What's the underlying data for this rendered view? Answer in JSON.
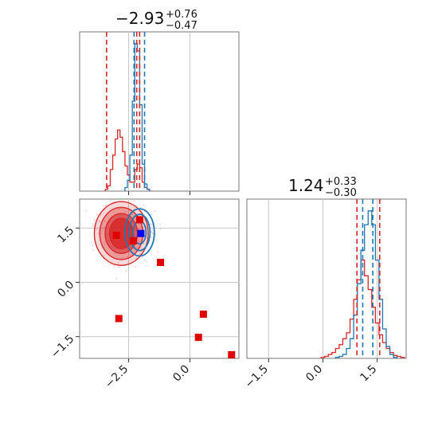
{
  "chart_data": [
    {
      "type": "histogram",
      "panel": "top-left",
      "title": {
        "median": "−2.93",
        "plus": "+0.76",
        "minus": "−0.47"
      },
      "xlim": [
        -4.5,
        2.0
      ],
      "x_ticks": [
        -2.5,
        0.0
      ],
      "grid": true,
      "series": [
        {
          "color": "#d62728",
          "x": [
            -3.4,
            -3.3,
            -3.2,
            -3.1,
            -3.0,
            -2.9,
            -2.8,
            -2.7,
            -2.6,
            -2.5,
            -2.4,
            -2.3,
            -2.2,
            -2.1,
            -2.0,
            -1.9,
            -1.8,
            -1.7,
            -1.6
          ],
          "y": [
            0.01,
            0.03,
            0.12,
            0.2,
            0.29,
            0.34,
            0.3,
            0.22,
            0.14,
            0.09,
            0.05,
            0.05,
            0.12,
            0.15,
            0.13,
            0.05,
            0.02,
            0.01,
            0.0
          ]
        },
        {
          "color": "#1f77b4",
          "x": [
            -2.6,
            -2.5,
            -2.4,
            -2.3,
            -2.2,
            -2.1,
            -2.0,
            -1.9,
            -1.8,
            -1.7
          ],
          "y": [
            0.02,
            0.06,
            0.2,
            0.5,
            0.82,
            0.78,
            0.48,
            0.15,
            0.04,
            0.01
          ]
        }
      ],
      "quantile_lines": [
        {
          "color": "#d62728",
          "x": [
            -3.4,
            -2.17,
            -2.05
          ]
        },
        {
          "color": "#1f77b4",
          "x": [
            -2.28,
            -1.85
          ]
        }
      ]
    },
    {
      "type": "scatter",
      "panel": "bottom-left",
      "xlim": [
        -4.5,
        2.0
      ],
      "ylim": [
        -2.1,
        2.3
      ],
      "x_ticks": [
        -2.5,
        0.0
      ],
      "y_ticks": [
        -1.5,
        0.0,
        1.5
      ],
      "grid": true,
      "contours": [
        {
          "color": "#d62728",
          "center": [
            -2.8,
            1.35
          ],
          "levels": [
            {
              "rx": 1.1,
              "ry": 0.88,
              "opacity": 0.18
            },
            {
              "rx": 0.88,
              "ry": 0.72,
              "opacity": 0.35
            },
            {
              "rx": 0.66,
              "ry": 0.55,
              "opacity": 0.55
            },
            {
              "rx": 0.48,
              "ry": 0.42,
              "opacity": 0.8
            }
          ]
        },
        {
          "color": "#1f77b4",
          "center": [
            -2.05,
            1.38
          ],
          "levels": [
            {
              "rx": 0.6,
              "ry": 0.65,
              "opacity": 0.0
            },
            {
              "rx": 0.42,
              "ry": 0.5,
              "opacity": 0.0
            },
            {
              "rx": 0.26,
              "ry": 0.32,
              "opacity": 0.0
            }
          ]
        }
      ],
      "markers": [
        {
          "x": -3.0,
          "y": 1.3,
          "color": "#e00000"
        },
        {
          "x": -2.05,
          "y": 1.73,
          "color": "#e00000"
        },
        {
          "x": -2.3,
          "y": 1.15,
          "color": "#e00000"
        },
        {
          "x": -1.2,
          "y": 0.55,
          "color": "#e00000"
        },
        {
          "x": -2.9,
          "y": -1.0,
          "color": "#e00000"
        },
        {
          "x": 0.55,
          "y": -0.88,
          "color": "#e00000"
        },
        {
          "x": 0.35,
          "y": -1.52,
          "color": "#e00000"
        },
        {
          "x": 1.7,
          "y": -2.0,
          "color": "#e00000"
        },
        {
          "x": -2.0,
          "y": 1.35,
          "color": "#0000ff"
        }
      ]
    },
    {
      "type": "histogram",
      "panel": "bottom-right",
      "title": {
        "median": "1.24",
        "plus": "+0.33",
        "minus": "−0.30"
      },
      "xlim": [
        -2.1,
        2.3
      ],
      "x_ticks": [
        -1.5,
        0.0,
        1.5
      ],
      "grid": true,
      "series": [
        {
          "color": "#d62728",
          "x": [
            0.0,
            0.1,
            0.2,
            0.3,
            0.4,
            0.5,
            0.6,
            0.7,
            0.8,
            0.9,
            1.0,
            1.1,
            1.2,
            1.3,
            1.4,
            1.5,
            1.6,
            1.7,
            1.8,
            1.9,
            2.0,
            2.1,
            2.2
          ],
          "y": [
            0.005,
            0.01,
            0.02,
            0.03,
            0.05,
            0.07,
            0.1,
            0.13,
            0.2,
            0.3,
            0.4,
            0.5,
            0.42,
            0.35,
            0.26,
            0.18,
            0.12,
            0.08,
            0.05,
            0.03,
            0.015,
            0.01,
            0.005
          ]
        },
        {
          "color": "#1f77b4",
          "x": [
            0.4,
            0.5,
            0.6,
            0.7,
            0.8,
            0.9,
            1.0,
            1.1,
            1.2,
            1.3,
            1.4,
            1.5,
            1.6,
            1.7,
            1.8,
            1.9,
            2.0
          ],
          "y": [
            0.005,
            0.01,
            0.02,
            0.05,
            0.1,
            0.22,
            0.38,
            0.55,
            0.68,
            0.75,
            0.68,
            0.5,
            0.3,
            0.15,
            0.06,
            0.02,
            0.005
          ]
        }
      ],
      "quantile_lines": [
        {
          "color": "#d62728",
          "x": [
            0.94,
            1.57
          ]
        },
        {
          "color": "#1f77b4",
          "x": [
            1.1,
            1.38
          ]
        }
      ]
    }
  ]
}
